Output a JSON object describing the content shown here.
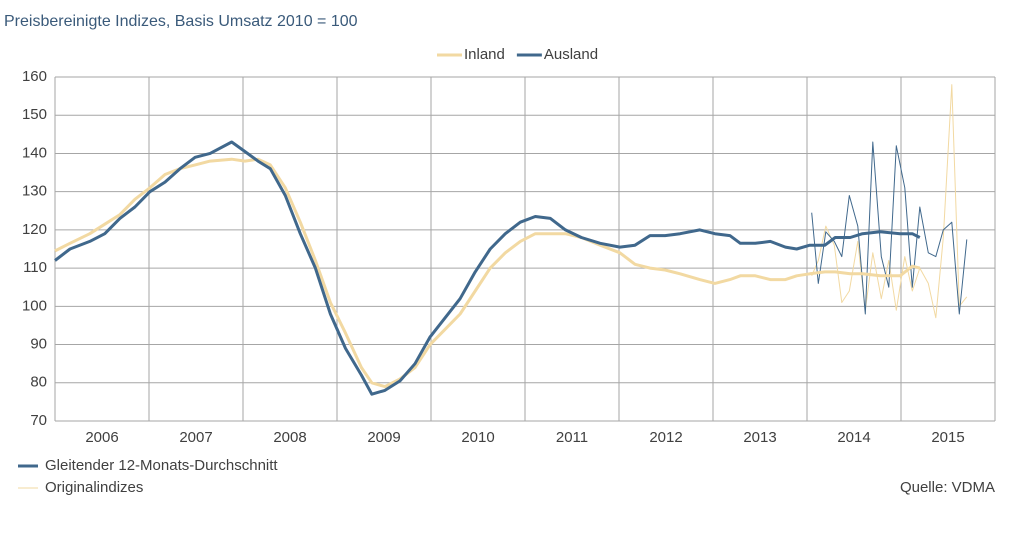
{
  "chart_data": {
    "type": "line",
    "title": "Preisbereinigte Indizes, Basis Umsatz 2010 = 100",
    "xlim": [
      2006,
      2016
    ],
    "xgrid": [
      2006,
      2007,
      2008,
      2009,
      2010,
      2011,
      2012,
      2013,
      2014,
      2015,
      2016
    ],
    "xticks": [
      {
        "value": 2006.5,
        "label": "2006"
      },
      {
        "value": 2007.5,
        "label": "2007"
      },
      {
        "value": 2008.5,
        "label": "2008"
      },
      {
        "value": 2009.5,
        "label": "2009"
      },
      {
        "value": 2010.5,
        "label": "2010"
      },
      {
        "value": 2011.5,
        "label": "2011"
      },
      {
        "value": 2012.5,
        "label": "2012"
      },
      {
        "value": 2013.5,
        "label": "2013"
      },
      {
        "value": 2014.5,
        "label": "2014"
      },
      {
        "value": 2015.5,
        "label": "2015"
      }
    ],
    "ylim": [
      70,
      160
    ],
    "yticks": [
      70,
      80,
      90,
      100,
      110,
      120,
      130,
      140,
      150,
      160
    ],
    "grid": true,
    "series": [
      {
        "name": "Inland",
        "color": "#f2d9a2",
        "x": [
          2006.0,
          2006.16,
          2006.37,
          2006.53,
          2006.69,
          2006.85,
          2007.01,
          2007.17,
          2007.33,
          2007.49,
          2007.65,
          2007.88,
          2008.02,
          2008.16,
          2008.29,
          2008.45,
          2008.61,
          2008.77,
          2008.93,
          2009.09,
          2009.26,
          2009.37,
          2009.51,
          2009.67,
          2009.83,
          2009.99,
          2010.15,
          2010.31,
          2010.47,
          2010.63,
          2010.79,
          2010.95,
          2011.11,
          2011.27,
          2011.43,
          2011.6,
          2011.8,
          2012.01,
          2012.17,
          2012.33,
          2012.49,
          2012.65,
          2012.86,
          2013.02,
          2013.18,
          2013.29,
          2013.45,
          2013.61,
          2013.77,
          2013.89,
          2014.03,
          2014.19,
          2014.3,
          2014.46,
          2014.59,
          2014.78,
          2014.99,
          2015.12,
          2015.2
        ],
        "values": [
          114.5,
          116.5,
          119,
          121.5,
          124,
          128,
          131,
          134.5,
          136,
          137,
          138,
          138.5,
          138,
          138.5,
          137,
          131,
          122,
          112,
          101,
          93,
          84,
          80,
          79,
          81,
          84,
          90,
          94,
          98,
          104,
          110,
          114,
          117,
          119,
          119,
          119,
          118,
          116,
          114,
          111,
          110,
          109.5,
          108.5,
          107,
          106,
          107,
          108,
          108,
          107,
          107,
          108,
          108.5,
          109,
          109,
          108.5,
          108.5,
          108,
          108,
          110.5,
          110
        ]
      },
      {
        "name": "Ausland",
        "color": "#40688c",
        "x": [
          2006.0,
          2006.16,
          2006.37,
          2006.53,
          2006.69,
          2006.85,
          2007.01,
          2007.17,
          2007.33,
          2007.49,
          2007.65,
          2007.88,
          2008.02,
          2008.16,
          2008.29,
          2008.45,
          2008.61,
          2008.77,
          2008.93,
          2009.09,
          2009.26,
          2009.37,
          2009.51,
          2009.67,
          2009.83,
          2009.99,
          2010.15,
          2010.31,
          2010.47,
          2010.63,
          2010.79,
          2010.95,
          2011.11,
          2011.27,
          2011.43,
          2011.6,
          2011.8,
          2012.01,
          2012.17,
          2012.33,
          2012.49,
          2012.65,
          2012.86,
          2013.02,
          2013.18,
          2013.29,
          2013.45,
          2013.61,
          2013.77,
          2013.89,
          2014.03,
          2014.19,
          2014.3,
          2014.46,
          2014.59,
          2014.78,
          2014.99,
          2015.12,
          2015.2
        ],
        "values": [
          112,
          115,
          117,
          119,
          123,
          126,
          130,
          132.5,
          136,
          139,
          140,
          143,
          140.5,
          138,
          136,
          129,
          119,
          110,
          98,
          89,
          82,
          77,
          78,
          80.5,
          85,
          92,
          97,
          102,
          109,
          115,
          119,
          122,
          123.5,
          123,
          120,
          118,
          116.5,
          115.5,
          116,
          118.5,
          118.5,
          119,
          120,
          119,
          118.5,
          116.5,
          116.5,
          117,
          115.5,
          115,
          116,
          116,
          118,
          118,
          119,
          119.5,
          119,
          119,
          118
        ]
      }
    ],
    "original_series": [
      {
        "color": "#f2d9a2",
        "x": [
          2014.05,
          2014.12,
          2014.2,
          2014.29,
          2014.37,
          2014.45,
          2014.54,
          2014.62,
          2014.7,
          2014.79,
          2014.87,
          2014.95,
          2015.04,
          2015.12,
          2015.2,
          2015.29,
          2015.37,
          2015.45,
          2015.54,
          2015.62,
          2015.7
        ],
        "values": [
          108,
          112,
          121,
          116,
          101,
          104,
          117,
          99,
          114,
          102,
          112,
          99,
          113,
          104,
          110,
          106,
          97,
          118,
          158,
          100,
          102.5
        ]
      },
      {
        "color": "#40688c",
        "x": [
          2014.05,
          2014.12,
          2014.2,
          2014.29,
          2014.37,
          2014.45,
          2014.54,
          2014.62,
          2014.7,
          2014.79,
          2014.87,
          2014.95,
          2015.04,
          2015.12,
          2015.2,
          2015.29,
          2015.37,
          2015.45,
          2015.54,
          2015.62,
          2015.7
        ],
        "values": [
          124.5,
          106,
          119.5,
          117,
          113,
          129,
          121,
          98,
          143,
          113,
          105,
          142,
          131,
          105,
          126,
          114,
          113,
          120,
          122,
          98,
          117.5
        ]
      }
    ],
    "line_legend": [
      "Gleitender 12-Monats-Durchschnitt",
      "Originalindizes"
    ],
    "source": "Quelle: VDMA"
  }
}
